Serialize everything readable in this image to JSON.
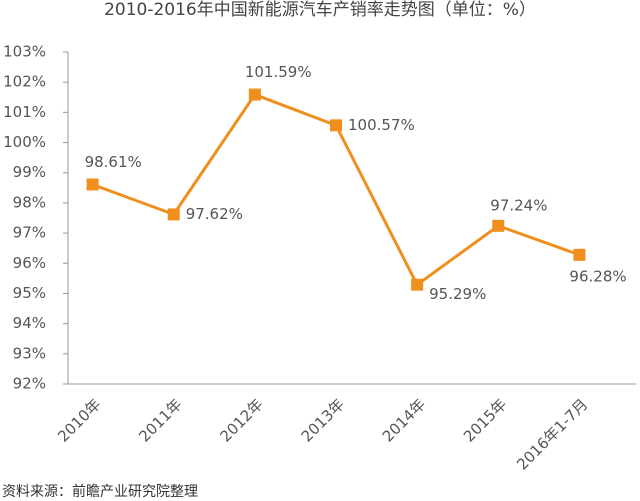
{
  "chart_data": {
    "type": "line",
    "title": "2010-2016年中国新能源汽车产销率走势图（单位：%）",
    "source": "资料来源：前瞻产业研究院整理",
    "categories": [
      "2010年",
      "2011年",
      "2012年",
      "2013年",
      "2014年",
      "2015年",
      "2016年1-7月"
    ],
    "series": [
      {
        "name": "产销率",
        "color": "#ef8f1e",
        "values": [
          98.61,
          97.62,
          101.59,
          100.57,
          95.29,
          97.24,
          96.28
        ],
        "value_labels": [
          "98.61%",
          "97.62%",
          "101.59%",
          "100.57%",
          "95.29%",
          "97.24%",
          "96.28%"
        ]
      }
    ],
    "ylim": [
      92,
      103
    ],
    "yticks": [
      {
        "value": 92,
        "label": "92%"
      },
      {
        "value": 93,
        "label": "93%"
      },
      {
        "value": 94,
        "label": "94%"
      },
      {
        "value": 95,
        "label": "95%"
      },
      {
        "value": 96,
        "label": "96%"
      },
      {
        "value": 97,
        "label": "97%"
      },
      {
        "value": 98,
        "label": "98%"
      },
      {
        "value": 99,
        "label": "99%"
      },
      {
        "value": 100,
        "label": "100%"
      },
      {
        "value": 101,
        "label": "101%"
      },
      {
        "value": 102,
        "label": "102%"
      },
      {
        "value": 103,
        "label": "103%"
      }
    ],
    "grid": false
  }
}
